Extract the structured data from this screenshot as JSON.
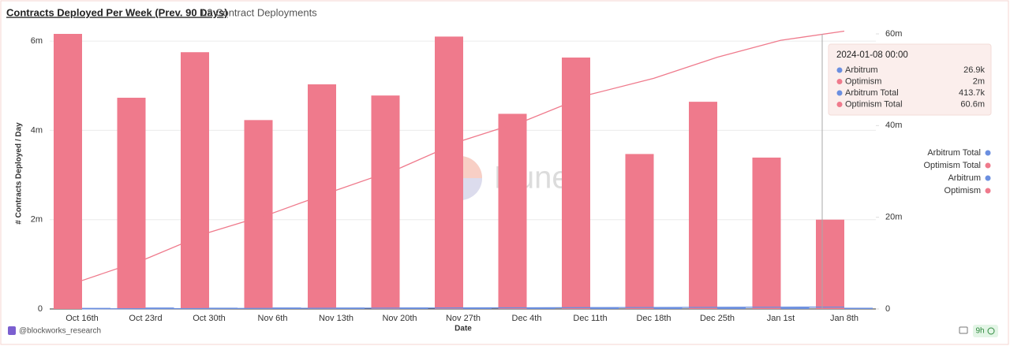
{
  "header": {
    "title": "Contracts Deployed Per Week (Prev. 90 Days)",
    "subtitle": "L2 Contract Deployments"
  },
  "chart_data": {
    "type": "bar",
    "x_label": "Date",
    "y_label": "# Contracts Deployed / Day",
    "categories": [
      "Oct 16th",
      "Oct 23rd",
      "Oct 30th",
      "Nov 6th",
      "Nov 13th",
      "Nov 20th",
      "Nov 27th",
      "Dec 4th",
      "Dec 11th",
      "Dec 18th",
      "Dec 25th",
      "Jan 1st",
      "Jan 8th"
    ],
    "ylim": [
      0,
      6160000
    ],
    "yticks": [
      0,
      {
        "value": 2000000,
        "label": "2m"
      },
      {
        "value": 4000000,
        "label": "4m"
      },
      {
        "value": 6000000,
        "label": "6m"
      }
    ],
    "y2lim": [
      0,
      60000000
    ],
    "y2ticks": [
      0,
      {
        "value": 20000000,
        "label": "20m"
      },
      {
        "value": 40000000,
        "label": "40m"
      },
      {
        "value": 60000000,
        "label": "60m"
      }
    ],
    "grid": true,
    "legend": "right",
    "series": [
      {
        "name": "Arbitrum Total",
        "color": "#6b8fe0",
        "type": "line",
        "axis": "y2",
        "values": [
          30000,
          62000,
          95000,
          127000,
          160000,
          193000,
          225000,
          258000,
          292000,
          325000,
          355000,
          386800,
          413700
        ],
        "value_labels": [
          null,
          null,
          null,
          null,
          null,
          null,
          null,
          null,
          null,
          null,
          null,
          null,
          "413.7k"
        ]
      },
      {
        "name": "Optimism Total",
        "color": "#ef7a8c",
        "type": "line",
        "axis": "y2",
        "values": [
          6200000,
          10900000,
          16700000,
          20900000,
          25900000,
          30700000,
          36800000,
          41200000,
          46800000,
          50300000,
          54900000,
          58600000,
          60600000
        ],
        "value_labels": [
          null,
          null,
          null,
          null,
          null,
          null,
          null,
          null,
          null,
          null,
          null,
          null,
          "60.6m"
        ]
      },
      {
        "name": "Arbitrum",
        "color": "#6b8fe0",
        "type": "bar",
        "values": [
          24000,
          32000,
          28000,
          33000,
          31000,
          32000,
          30000,
          33000,
          34000,
          33000,
          30000,
          31000,
          26900
        ],
        "value_labels": [
          null,
          null,
          null,
          null,
          null,
          null,
          null,
          null,
          null,
          null,
          null,
          null,
          "26.9k"
        ]
      },
      {
        "name": "Optimism",
        "color": "#ef7a8c",
        "type": "bar",
        "values": [
          6160000,
          4730000,
          5750000,
          4230000,
          5030000,
          4780000,
          6100000,
          4370000,
          5630000,
          3470000,
          4640000,
          3390000,
          2000000
        ],
        "value_labels": [
          null,
          null,
          null,
          null,
          null,
          null,
          null,
          null,
          null,
          null,
          null,
          null,
          "2m"
        ]
      }
    ],
    "tooltip": {
      "title": "2024-01-08 00:00",
      "index": 12,
      "order": [
        2,
        3,
        0,
        1
      ]
    },
    "watermark": "Dune"
  },
  "footer": {
    "author": "@blockworks_research",
    "age": "9h"
  }
}
